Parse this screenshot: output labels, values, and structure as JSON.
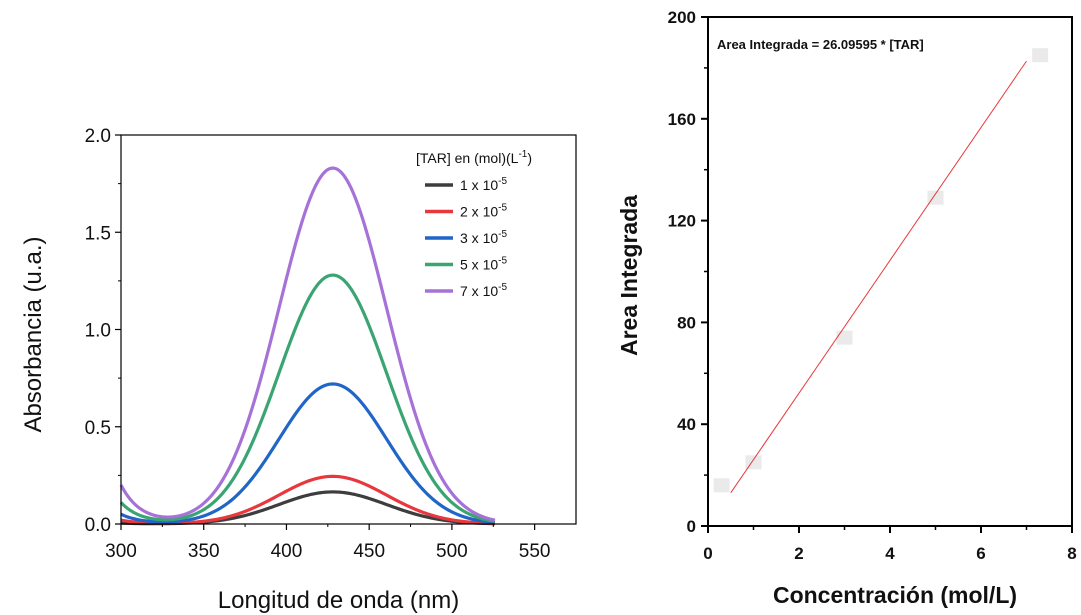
{
  "chart_data": [
    {
      "type": "line",
      "xlabel": "Longitud de onda (nm)",
      "ylabel": "Absorbancia (u.a.)",
      "xlim": [
        300,
        575
      ],
      "ylim": [
        0,
        2.0
      ],
      "xticks": [
        300,
        350,
        400,
        450,
        500,
        550
      ],
      "yticks": [
        0.0,
        0.5,
        1.0,
        1.5,
        2.0
      ],
      "xtick_labels": [
        "300",
        "350",
        "400",
        "450",
        "500",
        "550"
      ],
      "ytick_labels": [
        "0.0",
        "0.5",
        "1.0",
        "1.5",
        "2.0"
      ],
      "legend_title": "[TAR] en (mol)(L",
      "legend_title_sup": "-1",
      "legend_title_end": ")",
      "legend_position": "top-right",
      "series": [
        {
          "name": "1 x 10",
          "exp": "-5",
          "color": "#3d3d3d",
          "peak": 0.165,
          "base": 0.005
        },
        {
          "name": "2 x 10",
          "exp": "-5",
          "color": "#e8383d",
          "peak": 0.245,
          "base": 0.02
        },
        {
          "name": "3 x 10",
          "exp": "-5",
          "color": "#1f66c8",
          "peak": 0.72,
          "base": 0.05
        },
        {
          "name": "5 x 10",
          "exp": "-5",
          "color": "#3aa572",
          "peak": 1.28,
          "base": 0.11
        },
        {
          "name": "7 x 10",
          "exp": "-5",
          "color": "#a672d8",
          "peak": 1.83,
          "base": 0.2
        }
      ]
    },
    {
      "type": "scatter",
      "xlabel": "Concentración (mol/L)",
      "ylabel": "Area Integrada",
      "xlim": [
        0,
        8
      ],
      "ylim": [
        0,
        200
      ],
      "xticks": [
        0,
        2,
        4,
        6,
        8
      ],
      "yticks": [
        0,
        40,
        80,
        120,
        160,
        200
      ],
      "xtick_labels": [
        "0",
        "2",
        "4",
        "6",
        "8"
      ],
      "ytick_labels": [
        "0",
        "40",
        "80",
        "120",
        "160",
        "200"
      ],
      "annotation": "Area Integrada = 26.09595 * [TAR]",
      "fit_slope": 26.09595,
      "fit_color": "#e8383d",
      "fit_x": [
        0.5,
        7
      ],
      "points": [
        {
          "x": 0.3,
          "y": 16
        },
        {
          "x": 1,
          "y": 25
        },
        {
          "x": 3,
          "y": 74
        },
        {
          "x": 5,
          "y": 129
        },
        {
          "x": 7.3,
          "y": 185
        }
      ]
    }
  ]
}
